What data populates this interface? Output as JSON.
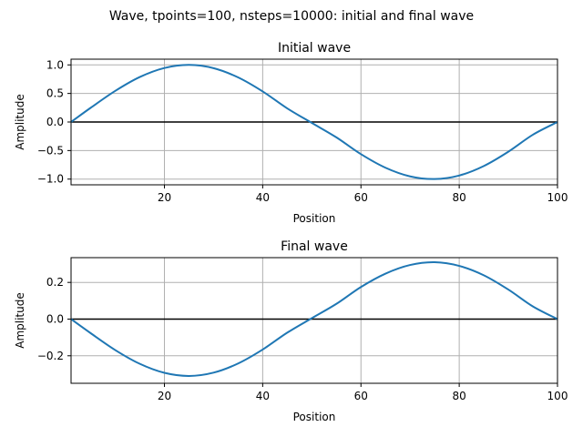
{
  "figure": {
    "suptitle": "Wave, tpoints=100, nsteps=10000: initial and final wave"
  },
  "chart_data": [
    {
      "type": "line",
      "title": "Initial wave",
      "xlabel": "Position",
      "ylabel": "Amplitude",
      "xlim": [
        1,
        100
      ],
      "ylim": [
        -1.1,
        1.1
      ],
      "xticks": [
        20,
        40,
        60,
        80,
        100
      ],
      "yticks": [
        -1.0,
        -0.5,
        0.0,
        0.5,
        1.0
      ],
      "ytick_labels": [
        "−1.0",
        "−0.5",
        "0.0",
        "0.5",
        "1.0"
      ],
      "grid": true,
      "series": [
        {
          "color": "#1f77b4",
          "x": [
            1,
            5,
            10,
            15,
            20,
            25,
            30,
            35,
            40,
            45,
            50,
            55,
            60,
            65,
            70,
            75,
            80,
            85,
            90,
            95,
            100
          ],
          "y": [
            0.0,
            0.249,
            0.545,
            0.788,
            0.946,
            1.0,
            0.943,
            0.781,
            0.535,
            0.238,
            -0.016,
            -0.269,
            -0.563,
            -0.801,
            -0.952,
            -0.999,
            -0.937,
            -0.771,
            -0.52,
            -0.222,
            0.0
          ]
        }
      ],
      "hline": {
        "y": 0,
        "color": "#000000"
      }
    },
    {
      "type": "line",
      "title": "Final wave",
      "xlabel": "Position",
      "ylabel": "Amplitude",
      "xlim": [
        1,
        100
      ],
      "ylim": [
        -0.35,
        0.335
      ],
      "xticks": [
        20,
        40,
        60,
        80,
        100
      ],
      "yticks": [
        -0.2,
        0.0,
        0.2
      ],
      "ytick_labels": [
        "−0.2",
        "0.0",
        "0.2"
      ],
      "grid": true,
      "series": [
        {
          "color": "#1f77b4",
          "x": [
            1,
            5,
            10,
            15,
            20,
            25,
            30,
            35,
            40,
            45,
            50,
            55,
            60,
            65,
            70,
            75,
            80,
            85,
            90,
            95,
            100
          ],
          "y": [
            0.0,
            -0.077,
            -0.169,
            -0.244,
            -0.293,
            -0.31,
            -0.292,
            -0.242,
            -0.166,
            -0.074,
            0.005,
            0.083,
            0.175,
            0.248,
            0.295,
            0.31,
            0.29,
            0.239,
            0.161,
            0.069,
            0.0
          ]
        }
      ],
      "hline": {
        "y": 0,
        "color": "#000000"
      }
    }
  ]
}
